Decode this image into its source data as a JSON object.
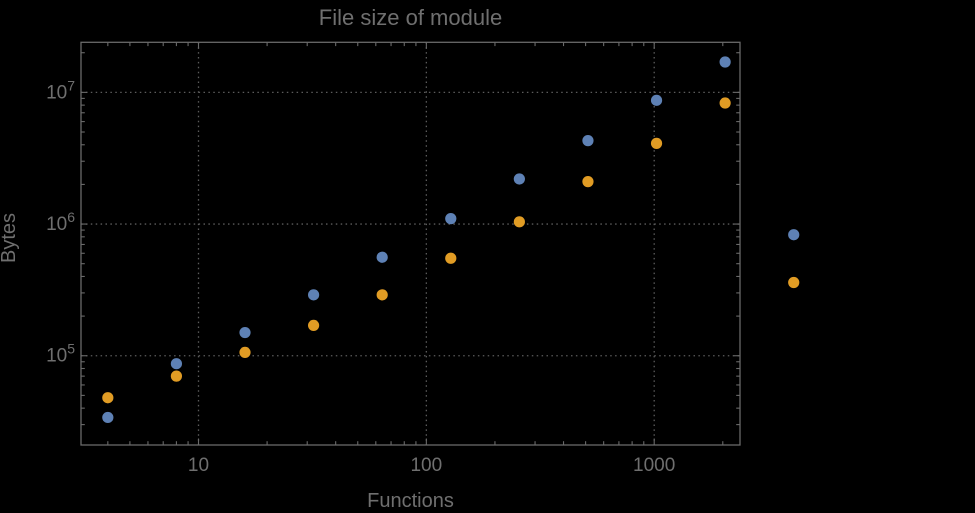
{
  "title": "File size of module",
  "x_axis": {
    "label": "Functions",
    "tick_labels": [
      "10",
      "100",
      "1000"
    ],
    "tick_values": [
      10,
      100,
      1000
    ]
  },
  "y_axis": {
    "label": "Bytes",
    "tick_labels": [
      {
        "base": "10",
        "exp": "5",
        "value": 100000
      },
      {
        "base": "10",
        "exp": "6",
        "value": 1000000
      },
      {
        "base": "10",
        "exp": "7",
        "value": 10000000
      }
    ]
  },
  "colors": {
    "background": "#000000",
    "frame": "#6a6a6a",
    "grid": "#5c5c5c",
    "text": "#6f6f6f",
    "series1": "#5e81b5",
    "series2": "#e19c24"
  },
  "chart_data": {
    "type": "scatter",
    "title": "File size of module",
    "xlabel": "Functions",
    "ylabel": "Bytes",
    "xscale": "log",
    "yscale": "log",
    "xlim": [
      3.05,
      2380
    ],
    "ylim": [
      21000,
      24000000
    ],
    "grid": "dotted",
    "legend": "none",
    "plot_range_clipping": false,
    "x": [
      4,
      8,
      16,
      32,
      64,
      128,
      256,
      512,
      1024,
      2048,
      4096
    ],
    "series": [
      {
        "name": "series-1-blue",
        "color": "#5e81b5",
        "values": [
          34000,
          87000,
          150000,
          290000,
          560000,
          1100000,
          2200000,
          4300000,
          8700000,
          17000000,
          830000
        ]
      },
      {
        "name": "series-2-orange",
        "color": "#e19c24",
        "values": [
          48000,
          70000,
          106000,
          170000,
          290000,
          550000,
          1040000,
          2100000,
          4100000,
          8300000,
          360000
        ]
      }
    ]
  }
}
